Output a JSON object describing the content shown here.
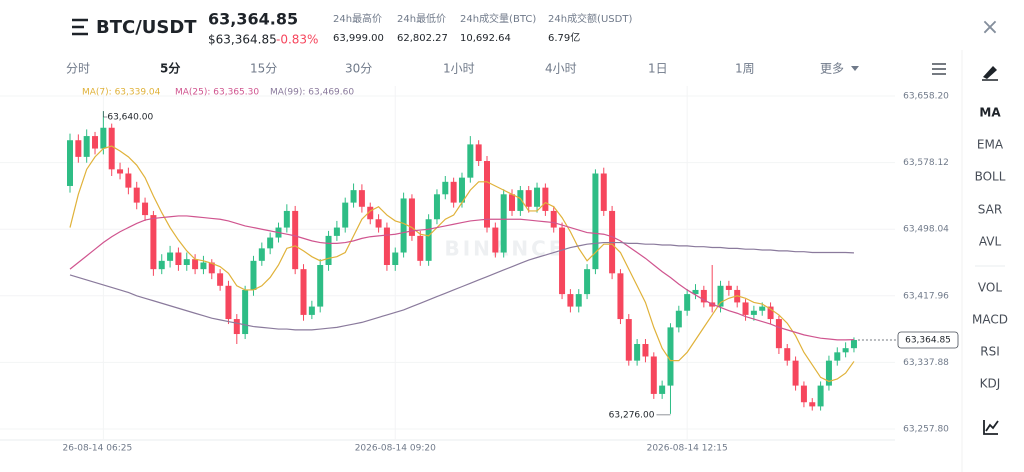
{
  "header": {
    "pair": "BTC/USDT",
    "price": "63,364.85",
    "price_usd": "$63,364.85",
    "change": "-0.83%",
    "stats": [
      {
        "label": "24h最高价",
        "value": "63,999.00"
      },
      {
        "label": "24h最低价",
        "value": "62,802.27"
      },
      {
        "label": "24h成交量(BTC)",
        "value": "10,692.64"
      },
      {
        "label": "24h成交额(USDT)",
        "value": "6.79亿"
      }
    ]
  },
  "tabs": [
    "分时",
    "5分",
    "15分",
    "30分",
    "1小时",
    "4小时",
    "1日",
    "1周",
    "更多"
  ],
  "indicators": [
    "MA",
    "EMA",
    "BOLL",
    "SAR",
    "AVL",
    "VOL",
    "MACD",
    "RSI",
    "KDJ"
  ],
  "chart_data": {
    "type": "candlestick",
    "watermark": "BINANCE",
    "up_color": "#2ebd85",
    "down_color": "#f6465d",
    "categories": [
      null,
      null,
      null,
      null,
      "26-08-14 06:25",
      null,
      null,
      null,
      null,
      null,
      null,
      null,
      null,
      null,
      null,
      null,
      null,
      null,
      null,
      null,
      null,
      null,
      null,
      null,
      null,
      null,
      null,
      null,
      null,
      null,
      null,
      null,
      null,
      null,
      null,
      null,
      null,
      null,
      null,
      "2026-08-14 09:20",
      null,
      null,
      null,
      null,
      null,
      null,
      null,
      null,
      null,
      null,
      null,
      null,
      null,
      null,
      null,
      null,
      null,
      null,
      null,
      null,
      null,
      null,
      null,
      null,
      null,
      null,
      null,
      null,
      null,
      null,
      null,
      null,
      null,
      null,
      "2026-08-14 12:15",
      null,
      null,
      null,
      null,
      null,
      null,
      null,
      null,
      null,
      null,
      null,
      null,
      null,
      null,
      null,
      null,
      null,
      null,
      null,
      null
    ],
    "open": [
      63550,
      63605,
      63585,
      63610,
      63595,
      63620,
      63570,
      63565,
      63548,
      63530,
      63515,
      63450,
      63460,
      63470,
      63455,
      63462,
      63450,
      63458,
      63445,
      63430,
      63390,
      63372,
      63425,
      63460,
      63475,
      63488,
      63500,
      63520,
      63450,
      63395,
      63405,
      63455,
      63490,
      63500,
      63530,
      63545,
      63525,
      63510,
      63500,
      63455,
      63470,
      63535,
      63490,
      63460,
      63510,
      63540,
      63555,
      63530,
      63560,
      63600,
      63580,
      63500,
      63470,
      63540,
      63520,
      63545,
      63525,
      63548,
      63520,
      63500,
      63420,
      63405,
      63420,
      63450,
      63565,
      63520,
      63445,
      63390,
      63340,
      63360,
      63345,
      63300,
      63310,
      63380,
      63400,
      63420,
      63425,
      63410,
      63405,
      63430,
      63425,
      63410,
      63395,
      63400,
      63405,
      63390,
      63355,
      63340,
      63310,
      63290,
      63285,
      63310,
      63340,
      63350,
      63355
    ],
    "high": [
      63613,
      63612,
      63618,
      63615,
      63640,
      63625,
      63578,
      63572,
      63555,
      63536,
      63520,
      63468,
      63478,
      63476,
      63470,
      63468,
      63466,
      63462,
      63450,
      63436,
      63396,
      63430,
      63466,
      63482,
      63494,
      63506,
      63528,
      63526,
      63456,
      63412,
      63462,
      63496,
      63508,
      63536,
      63553,
      63552,
      63530,
      63516,
      63506,
      63476,
      63542,
      63540,
      63496,
      63516,
      63546,
      63562,
      63560,
      63566,
      63610,
      63605,
      63586,
      63506,
      63546,
      63546,
      63550,
      63550,
      63554,
      63553,
      63526,
      63506,
      63426,
      63426,
      63456,
      63570,
      63572,
      63526,
      63450,
      63396,
      63366,
      63366,
      63350,
      63316,
      63385,
      63406,
      63426,
      63432,
      63430,
      63455,
      63436,
      63436,
      63430,
      63414,
      63406,
      63410,
      63410,
      63394,
      63360,
      63345,
      63315,
      63295,
      63315,
      63346,
      63356,
      63362,
      63368
    ],
    "low": [
      63542,
      63578,
      63578,
      63588,
      63588,
      63562,
      63558,
      63540,
      63522,
      63508,
      63442,
      63444,
      63452,
      63448,
      63448,
      63444,
      63444,
      63438,
      63424,
      63384,
      63360,
      63366,
      63418,
      63454,
      63468,
      63482,
      63494,
      63444,
      63388,
      63390,
      63398,
      63448,
      63484,
      63494,
      63524,
      63518,
      63504,
      63494,
      63448,
      63448,
      63464,
      63484,
      63454,
      63454,
      63504,
      63534,
      63524,
      63524,
      63554,
      63574,
      63494,
      63464,
      63464,
      63514,
      63514,
      63518,
      63518,
      63514,
      63494,
      63414,
      63398,
      63398,
      63414,
      63444,
      63514,
      63438,
      63384,
      63334,
      63334,
      63338,
      63294,
      63294,
      63276,
      63374,
      63394,
      63414,
      63404,
      63398,
      63398,
      63418,
      63404,
      63388,
      63388,
      63394,
      63384,
      63348,
      63334,
      63304,
      63284,
      63280,
      63280,
      63304,
      63334,
      63344,
      63350
    ],
    "close": [
      63605,
      63585,
      63610,
      63595,
      63620,
      63570,
      63565,
      63548,
      63530,
      63515,
      63450,
      63460,
      63470,
      63455,
      63462,
      63450,
      63458,
      63445,
      63430,
      63390,
      63372,
      63425,
      63460,
      63475,
      63488,
      63500,
      63520,
      63450,
      63395,
      63405,
      63455,
      63490,
      63500,
      63530,
      63545,
      63525,
      63510,
      63500,
      63455,
      63470,
      63535,
      63490,
      63460,
      63510,
      63540,
      63555,
      63530,
      63560,
      63600,
      63580,
      63500,
      63470,
      63540,
      63520,
      63545,
      63525,
      63548,
      63520,
      63500,
      63420,
      63405,
      63420,
      63450,
      63565,
      63520,
      63445,
      63390,
      63340,
      63360,
      63345,
      63300,
      63310,
      63380,
      63400,
      63420,
      63425,
      63410,
      63405,
      63430,
      63425,
      63410,
      63395,
      63400,
      63405,
      63390,
      63355,
      63340,
      63310,
      63290,
      63285,
      63310,
      63340,
      63350,
      63355,
      63364.85
    ],
    "series": [
      {
        "name": "MA(7): 63,339.04",
        "color": "#e0b23a",
        "values": [
          63500,
          63540,
          63570,
          63585,
          63595,
          63598,
          63592,
          63585,
          63575,
          63560,
          63538,
          63518,
          63500,
          63485,
          63472,
          63462,
          63460,
          63457,
          63453,
          63445,
          63430,
          63425,
          63425,
          63430,
          63440,
          63455,
          63475,
          63478,
          63472,
          63465,
          63460,
          63463,
          63465,
          63470,
          63490,
          63510,
          63520,
          63525,
          63515,
          63508,
          63505,
          63500,
          63492,
          63490,
          63500,
          63510,
          63515,
          63530,
          63545,
          63555,
          63555,
          63550,
          63545,
          63540,
          63535,
          63520,
          63520,
          63530,
          63525,
          63512,
          63495,
          63475,
          63460,
          63470,
          63480,
          63480,
          63470,
          63450,
          63430,
          63410,
          63380,
          63355,
          63340,
          63340,
          63350,
          63365,
          63380,
          63395,
          63410,
          63415,
          63418,
          63415,
          63410,
          63408,
          63402,
          63395,
          63385,
          63370,
          63350,
          63335,
          63320,
          63315,
          63318,
          63325,
          63339.04
        ]
      },
      {
        "name": "MA(25): 63,365.30",
        "color": "#d0558f",
        "values": [
          63450,
          63458,
          63466,
          63474,
          63482,
          63489,
          63495,
          63500,
          63505,
          63509,
          63511,
          63512,
          63513,
          63514,
          63514,
          63513,
          63512,
          63511,
          63510,
          63508,
          63505,
          63502,
          63500,
          63498,
          63496,
          63494,
          63492,
          63490,
          63487,
          63484,
          63482,
          63481,
          63481,
          63482,
          63484,
          63487,
          63489,
          63490,
          63491,
          63492,
          63494,
          63496,
          63497,
          63498,
          63500,
          63502,
          63504,
          63506,
          63508,
          63509,
          63510,
          63510,
          63510,
          63510,
          63510,
          63509,
          63508,
          63507,
          63506,
          63503,
          63500,
          63497,
          63494,
          63493,
          63492,
          63489,
          63484,
          63477,
          63470,
          63463,
          63455,
          63447,
          63440,
          63432,
          63425,
          63419,
          63413,
          63408,
          63404,
          63400,
          63397,
          63393,
          63390,
          63387,
          63384,
          63380,
          63377,
          63374,
          63371,
          63369,
          63367,
          63366,
          63365,
          63365,
          63365.3
        ]
      },
      {
        "name": "MA(99): 63,469.60",
        "color": "#8a7a9c",
        "values": [
          63443,
          63440,
          63437,
          63434,
          63431,
          63428,
          63425,
          63422,
          63418,
          63415,
          63412,
          63409,
          63406,
          63403,
          63400,
          63397,
          63394,
          63391,
          63389,
          63387,
          63385,
          63383,
          63381,
          63380,
          63379,
          63378,
          63378,
          63377,
          63377,
          63377,
          63378,
          63379,
          63380,
          63382,
          63384,
          63386,
          63389,
          63392,
          63395,
          63398,
          63401,
          63405,
          63409,
          63413,
          63417,
          63421,
          63425,
          63429,
          63433,
          63437,
          63441,
          63445,
          63449,
          63453,
          63457,
          63461,
          63464,
          63467,
          63470,
          63473,
          63476,
          63478,
          63480,
          63481,
          63482,
          63482,
          63482,
          63481,
          63481,
          63480,
          63480,
          63479,
          63479,
          63478,
          63478,
          63477,
          63477,
          63476,
          63476,
          63475,
          63475,
          63474,
          63474,
          63473,
          63473,
          63472,
          63472,
          63471,
          63471,
          63470,
          63470,
          63470,
          63470,
          63470,
          63469.6
        ]
      }
    ],
    "ylim": [
      63244.6,
      63670.2
    ],
    "yticks": [
      {
        "value": 63257.8,
        "label": "63,257.80"
      },
      {
        "value": 63337.88,
        "label": "63,337.88"
      },
      {
        "value": 63417.96,
        "label": "63,417.96"
      },
      {
        "value": 63498.04,
        "label": "63,498.04"
      },
      {
        "value": 63578.12,
        "label": "63,578.12"
      },
      {
        "value": 63658.2,
        "label": "63,658.20"
      }
    ],
    "high_label": "63,640.00",
    "low_label": "63,276.00",
    "last_price_label": "63,364.85",
    "grid": true
  }
}
